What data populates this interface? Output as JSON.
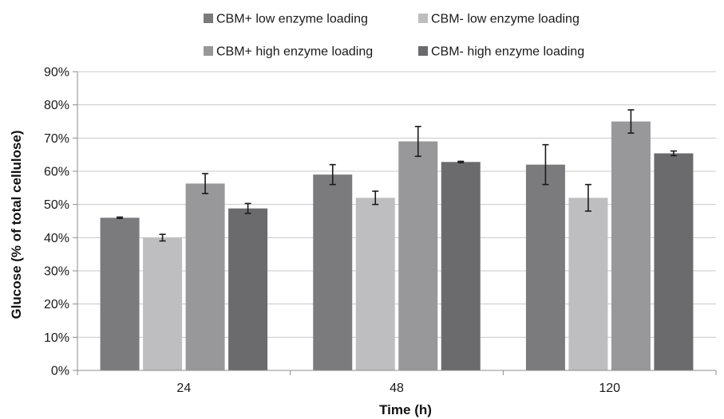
{
  "chart_data": {
    "type": "bar",
    "title": "",
    "xlabel": "Time (h)",
    "ylabel": "Glucose (% of total cellulose)",
    "categories": [
      "24",
      "48",
      "120"
    ],
    "ylim": [
      0,
      90
    ],
    "yticks": [
      0,
      10,
      20,
      30,
      40,
      50,
      60,
      70,
      80,
      90
    ],
    "ytick_labels": [
      "0%",
      "10%",
      "20%",
      "30%",
      "40%",
      "50%",
      "60%",
      "70%",
      "80%",
      "90%"
    ],
    "grid": "horizontal",
    "legend_position": "top",
    "series": [
      {
        "name": "CBM+ low enzyme loading",
        "color": "#7b7b7e",
        "values": [
          46,
          59,
          62
        ],
        "errors": [
          0.2,
          3,
          6
        ]
      },
      {
        "name": "CBM- low enzyme loading",
        "color": "#bebec0",
        "values": [
          40,
          52,
          52
        ],
        "errors": [
          1,
          2,
          4
        ]
      },
      {
        "name": "CBM+ high enzyme loading",
        "color": "#98989b",
        "values": [
          56.3,
          69,
          75
        ],
        "errors": [
          3,
          4.5,
          3.5
        ]
      },
      {
        "name": "CBM- high enzyme loading",
        "color": "#6b6b6e",
        "values": [
          48.8,
          62.8,
          65.4
        ],
        "errors": [
          1.5,
          0.2,
          0.7
        ]
      }
    ]
  }
}
